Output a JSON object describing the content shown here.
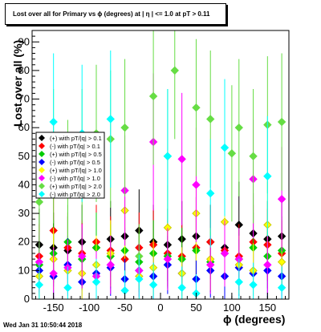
{
  "title": "Lost over all for Primary vs ϕ (degrees) at | η | <= 1.0 at pT > 0.11",
  "footer": "Wed Jan 31 10:50:44 2018",
  "chart_data": {
    "type": "scatter",
    "xlabel": "ϕ (degrees)",
    "ylabel": "Lost over all (%)",
    "xlim": [
      -180,
      180
    ],
    "ylim": [
      0,
      94
    ],
    "xticks": [
      "-150",
      "-100",
      "-50",
      "0",
      "50",
      "100",
      "150"
    ],
    "yticks": [
      "0",
      "10",
      "20",
      "30",
      "40",
      "50",
      "60",
      "70",
      "80",
      "90"
    ],
    "legend_position": "left-middle",
    "series": [
      {
        "name": "(+) with pT/|q| > 0.1",
        "color": "#000000",
        "x": [
          -170,
          -150,
          -130,
          -110,
          -90,
          -70,
          -50,
          -30,
          -10,
          10,
          30,
          50,
          70,
          90,
          110,
          130,
          150,
          170
        ],
        "y": [
          19,
          18,
          17,
          20,
          18,
          21,
          22,
          24,
          20,
          19,
          21,
          22,
          20,
          18,
          26,
          23,
          21,
          22
        ]
      },
      {
        "name": "(-) with pT/|q| > 0.1",
        "color": "#ff0000",
        "x": [
          -170,
          -150,
          -130,
          -110,
          -90,
          -70,
          -50,
          -30,
          -10,
          10,
          30,
          50,
          70,
          90,
          110,
          130,
          150,
          170
        ],
        "y": [
          15,
          24,
          18,
          16,
          20,
          17,
          14,
          18,
          19,
          16,
          15,
          18,
          20,
          17,
          15,
          20,
          19,
          16
        ]
      },
      {
        "name": "(+) with pT/|q| > 0.5",
        "color": "#00cc00",
        "x": [
          -170,
          -150,
          -130,
          -110,
          -90,
          -70,
          -50,
          -30,
          -10,
          10,
          30,
          50,
          70,
          90,
          110,
          130,
          150,
          170
        ],
        "y": [
          12,
          16,
          20,
          14,
          18,
          15,
          17,
          13,
          16,
          15,
          14,
          17,
          13,
          16,
          14,
          18,
          15,
          17
        ]
      },
      {
        "name": "(-) with pT/|q| > 0.5",
        "color": "#0000ff",
        "x": [
          -170,
          -150,
          -130,
          -110,
          -90,
          -70,
          -50,
          -30,
          -10,
          10,
          30,
          50,
          70,
          90,
          110,
          130,
          150,
          170
        ],
        "y": [
          10,
          8,
          12,
          6,
          9,
          11,
          7,
          10,
          8,
          12,
          9,
          7,
          10,
          8,
          11,
          9,
          10,
          8
        ]
      },
      {
        "name": "(+) with pT/|q| > 1.0",
        "color": "#ffff00",
        "x": [
          -170,
          -150,
          -130,
          -110,
          -90,
          -70,
          -50,
          -30,
          -10,
          10,
          30,
          50,
          70,
          90,
          110,
          130,
          150,
          170
        ],
        "y": [
          8,
          14,
          10,
          9,
          12,
          16,
          31,
          8,
          11,
          25,
          9,
          30,
          14,
          27,
          12,
          10,
          26,
          13
        ]
      },
      {
        "name": "(-) with pT/|q| > 1.0",
        "color": "#ff00ff",
        "x": [
          -170,
          -150,
          -130,
          -110,
          -90,
          -70,
          -50,
          -30,
          -10,
          10,
          30,
          50,
          70,
          90,
          110,
          130,
          150,
          170
        ],
        "y": [
          13,
          9,
          11,
          15,
          8,
          12,
          38,
          10,
          55,
          14,
          49,
          40,
          12,
          16,
          14,
          42,
          12,
          35
        ]
      },
      {
        "name": "(+) with pT/|q| > 2.0",
        "color": "#66dd44",
        "x": [
          -170,
          -150,
          -130,
          -110,
          -90,
          -70,
          -50,
          -30,
          -10,
          10,
          20,
          50,
          70,
          100,
          110,
          130,
          150,
          170
        ],
        "y": [
          34,
          50,
          42,
          50,
          58,
          56,
          60,
          15,
          71,
          50,
          80,
          67,
          63,
          51,
          60,
          50,
          61,
          62
        ]
      },
      {
        "name": "(-) with pT/|q| > 2.0",
        "color": "#00ffff",
        "x": [
          -170,
          -150,
          -130,
          -110,
          -90,
          -70,
          -50,
          -30,
          -10,
          10,
          30,
          50,
          70,
          90,
          110,
          130,
          150,
          170
        ],
        "y": [
          5,
          62,
          4,
          58,
          6,
          63,
          3,
          7,
          5,
          50,
          4,
          2,
          37,
          53,
          6,
          5,
          43,
          4
        ]
      }
    ]
  }
}
